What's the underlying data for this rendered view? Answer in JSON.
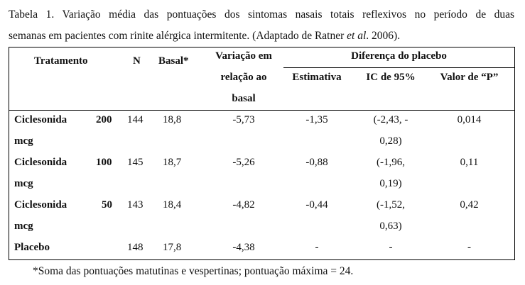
{
  "caption": {
    "line1": "Tabela 1. Variação média das pontuações dos sintomas nasais totais reflexivos no período de duas",
    "line2_pre": "semanas em pacientes com rinite alérgica intermitente. (Adaptado de Ratner ",
    "line2_italic": "et al",
    "line2_post": ". 2006)."
  },
  "header": {
    "tratamento": "Tratamento",
    "n": "N",
    "basal": "Basal*",
    "variacao": [
      "Variação em",
      "relação ao",
      "basal"
    ],
    "diferenca": "Diferença do placebo",
    "estimativa": "Estimativa",
    "ic": "IC de 95%",
    "valor_p": "Valor de “P”"
  },
  "rows": [
    {
      "name": "Ciclesonida",
      "dose": "200",
      "unit": "mcg",
      "n": "144",
      "basal": "18,8",
      "variacao": "-5,73",
      "estimativa": "-1,35",
      "ic": [
        "(-2,43, -",
        "0,28)"
      ],
      "p": "0,014"
    },
    {
      "name": "Ciclesonida",
      "dose": "100",
      "unit": "mcg",
      "n": "145",
      "basal": "18,7",
      "variacao": "-5,26",
      "estimativa": "-0,88",
      "ic": [
        "(-1,96,",
        "0,19)"
      ],
      "p": "0,11"
    },
    {
      "name": "Ciclesonida",
      "dose": "50",
      "unit": "mcg",
      "n": "143",
      "basal": "18,4",
      "variacao": "-4,82",
      "estimativa": "-0,44",
      "ic": [
        "(-1,52,",
        "0,63)"
      ],
      "p": "0,42"
    },
    {
      "name": "Placebo",
      "dose": "",
      "unit": "",
      "n": "148",
      "basal": "17,8",
      "variacao": "-4,38",
      "estimativa": "-",
      "ic": [
        "-",
        ""
      ],
      "p": "-"
    }
  ],
  "footnote": "*Soma das pontuações matutinas e vespertinas; pontuação máxima = 24."
}
